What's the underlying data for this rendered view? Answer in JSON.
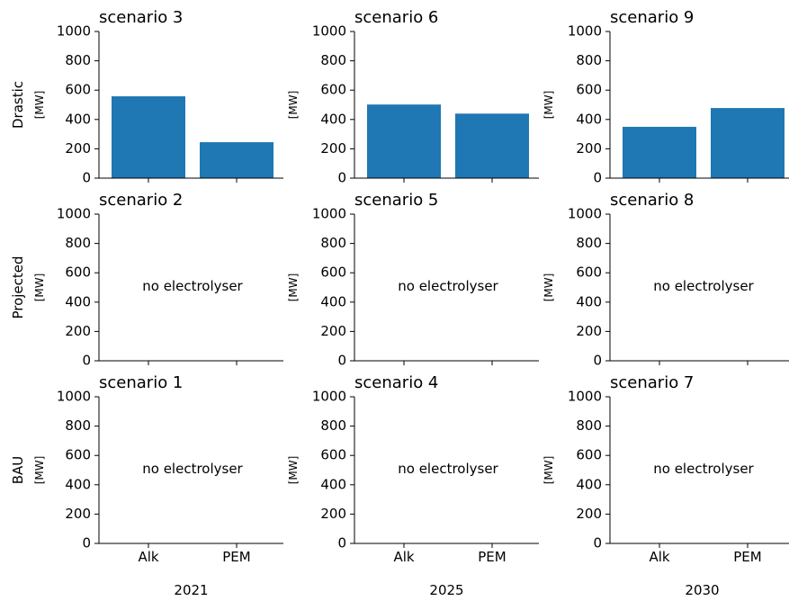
{
  "chart_data": {
    "type": "bar",
    "categories": [
      "Alk",
      "PEM"
    ],
    "ylim": [
      0,
      1000
    ],
    "yticks": [
      0,
      200,
      400,
      600,
      800,
      1000
    ],
    "ylabel": "[MW]",
    "bar_color": "#1f77b4",
    "empty_note": "no electrolyser",
    "rows": [
      "Drastic",
      "Projected",
      "BAU"
    ],
    "columns": [
      "2021",
      "2025",
      "2030"
    ],
    "panels": [
      {
        "title": "scenario 3",
        "values": [
          558,
          245
        ]
      },
      {
        "title": "scenario 6",
        "values": [
          502,
          440
        ]
      },
      {
        "title": "scenario 9",
        "values": [
          350,
          478
        ]
      },
      {
        "title": "scenario 2",
        "values": null
      },
      {
        "title": "scenario 5",
        "values": null
      },
      {
        "title": "scenario 8",
        "values": null
      },
      {
        "title": "scenario 1",
        "values": null
      },
      {
        "title": "scenario 4",
        "values": null
      },
      {
        "title": "scenario 7",
        "values": null
      }
    ]
  }
}
